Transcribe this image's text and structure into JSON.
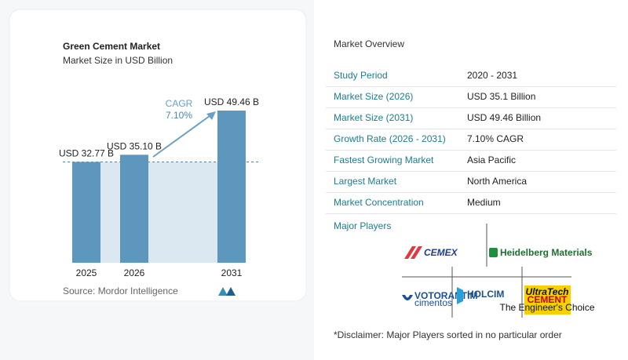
{
  "chart_data": {
    "type": "bar",
    "title": "Green Cement Market",
    "subtitle": "Market Size in USD Billion",
    "categories": [
      "2025",
      "2026",
      "2031"
    ],
    "values": [
      32.77,
      35.1,
      49.46
    ],
    "value_labels": [
      "USD 32.77 B",
      "USD 35.10 B",
      "USD 49.46 B"
    ],
    "color": "#5e97bd",
    "ylim": [
      0,
      55
    ],
    "cagr_label": "CAGR",
    "cagr_value": "7.10%",
    "source": "Source:  Mordor Intelligence"
  },
  "overview": {
    "title": "Market Overview",
    "rows": [
      [
        "Study Period",
        "2020 - 2031"
      ],
      [
        "Market Size (2026)",
        "USD 35.1 Billion"
      ],
      [
        "Market Size (2031)",
        "USD 49.46 Billion"
      ],
      [
        "Growth Rate (2026 - 2031)",
        "7.10% CAGR"
      ],
      [
        "Fastest Growing Market",
        "Asia Pacific"
      ],
      [
        "Largest Market",
        "North America"
      ],
      [
        "Market Concentration",
        "Medium"
      ]
    ],
    "players_title": "Major Players",
    "players": [
      "CEMEX",
      "Heidelberg Materials",
      [
        "VOTORANTIM",
        "cimentos"
      ],
      "HOLCIM",
      [
        "UltraTech",
        "CEMENT",
        "The Engineer's Choice"
      ]
    ],
    "disclaimer": "*Disclaimer: Major Players sorted in no particular order"
  }
}
